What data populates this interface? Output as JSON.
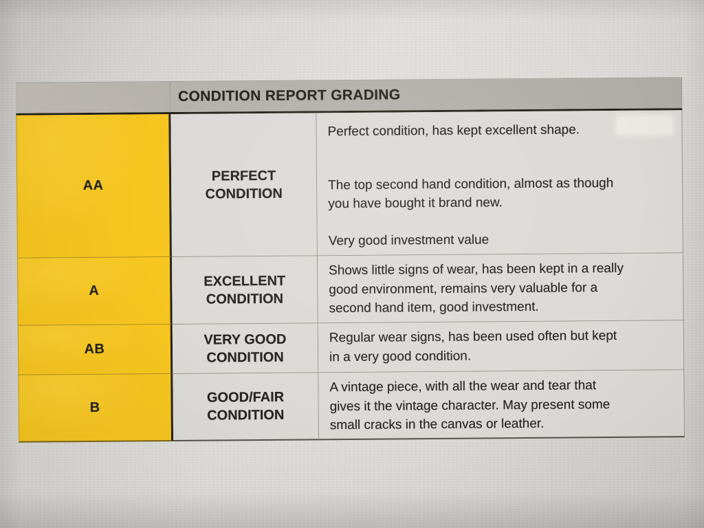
{
  "table": {
    "title": "CONDITION REPORT GRADING",
    "rows": [
      {
        "grade": "AA",
        "condition": "PERFECT\nCONDITION",
        "description": [
          "Perfect condition, has kept excellent shape.",
          "The top second hand condition, almost as though\nyou have bought it brand new.",
          "Very good investment value"
        ]
      },
      {
        "grade": "A",
        "condition": "EXCELLENT\nCONDITION",
        "description": [
          "Shows little signs of wear, has been kept in a really\ngood environment, remains very valuable for a\nsecond hand item, good investment."
        ]
      },
      {
        "grade": "AB",
        "condition": "VERY GOOD\nCONDITION",
        "description": [
          "Regular wear signs, has been used often but kept\nin a very good condition."
        ]
      },
      {
        "grade": "B",
        "condition": "GOOD/FAIR\nCONDITION",
        "description": [
          "A vintage piece, with all the wear and tear that\ngives it the vintage character. May present some\nsmall cracks in the canvas or leather."
        ]
      }
    ]
  },
  "theme": {
    "grade-yellow": "#f6c51f",
    "header-gray": "#b5b1ab",
    "header-gray-light": "#c1bdb6",
    "cell-gray": "#dcdad6",
    "text-dark": "#262420",
    "border-dark": "#242118",
    "border-mid": "#55524c",
    "border-light": "#98948f"
  }
}
